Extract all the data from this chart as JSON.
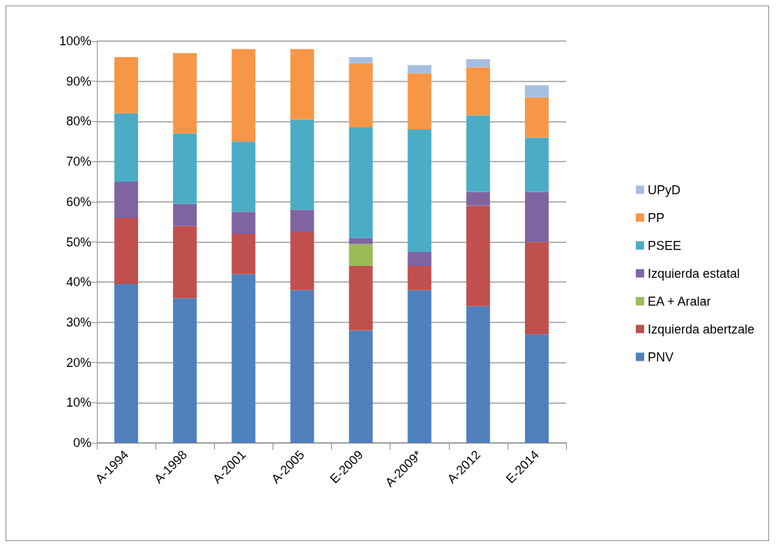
{
  "chart_data": {
    "type": "bar",
    "stacked": true,
    "categories": [
      "A-1994",
      "A-1998",
      "A-2001",
      "A-2005",
      "E-2009",
      "A-2009*",
      "A-2012",
      "E-2014"
    ],
    "series": [
      {
        "name": "PNV",
        "color": "#4f81bd",
        "values": [
          39.5,
          36,
          42,
          38,
          28,
          38,
          34,
          27
        ]
      },
      {
        "name": "Izquierda abertzale",
        "color": "#c0504d",
        "values": [
          16.5,
          18,
          10,
          14.5,
          16,
          6,
          25,
          23
        ]
      },
      {
        "name": "EA + Aralar",
        "color": "#9bbb59",
        "values": [
          null,
          null,
          null,
          null,
          5.5,
          null,
          null,
          null
        ]
      },
      {
        "name": "Izquierda estatal",
        "color": "#8064a2",
        "values": [
          9,
          5.5,
          5.5,
          5.5,
          1.5,
          3.5,
          3.5,
          12.5
        ]
      },
      {
        "name": "PSEE",
        "color": "#4bacc6",
        "values": [
          17,
          17.5,
          17.5,
          22.5,
          27.5,
          30.5,
          19,
          13.5
        ]
      },
      {
        "name": "PP",
        "color": "#f79646",
        "values": [
          14,
          20,
          23,
          17.5,
          16,
          14,
          12,
          10
        ]
      },
      {
        "name": "UPyD",
        "color": "#a5bfe3",
        "values": [
          null,
          null,
          null,
          null,
          1.5,
          2,
          2,
          3
        ]
      }
    ],
    "ylim": [
      0,
      100
    ],
    "yticks": [
      {
        "value": 0,
        "label": "0%"
      },
      {
        "value": 10,
        "label": "10%"
      },
      {
        "value": 20,
        "label": "20%"
      },
      {
        "value": 30,
        "label": "30%"
      },
      {
        "value": 40,
        "label": "40%"
      },
      {
        "value": 50,
        "label": "50%"
      },
      {
        "value": 60,
        "label": "60%"
      },
      {
        "value": 70,
        "label": "70%"
      },
      {
        "value": 80,
        "label": "80%"
      },
      {
        "value": 90,
        "label": "90%"
      },
      {
        "value": 100,
        "label": "100%"
      }
    ],
    "grid": "y",
    "legend": "right"
  }
}
